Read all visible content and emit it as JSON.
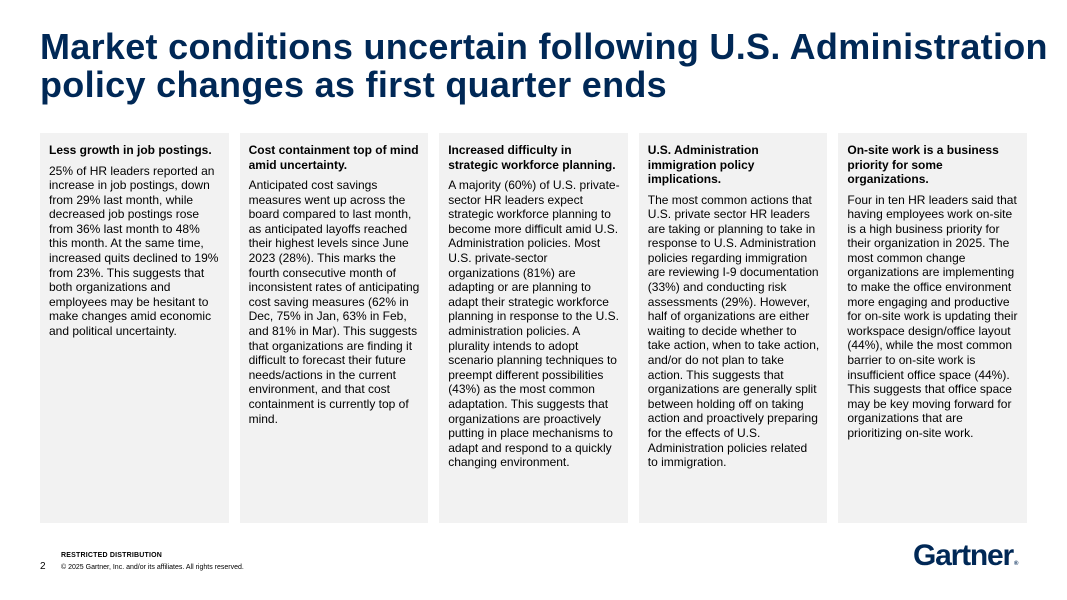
{
  "title": "Market conditions uncertain following U.S. Administration policy changes as first quarter ends",
  "cards": [
    {
      "heading": "Less growth in job postings.",
      "body": "25% of HR leaders reported an increase in job postings, down from 29% last month, while decreased job postings rose from 36% last month to 48% this month. At the same time, increased quits declined to 19% from 23%. This suggests that both organizations and employees may be hesitant to make changes amid economic and political uncertainty."
    },
    {
      "heading": "Cost containment top of mind amid uncertainty.",
      "body": "Anticipated cost savings measures went up across the board compared to last month, as anticipated layoffs reached their highest levels since June 2023 (28%). This marks the fourth consecutive month of inconsistent rates of anticipating cost saving measures (62% in Dec, 75% in Jan, 63% in Feb, and 81% in Mar). This suggests that organizations are finding it difficult to forecast their future needs/actions in the current environment, and that cost containment is currently top of mind."
    },
    {
      "heading": "Increased difficulty in strategic workforce planning.",
      "body": "A majority (60%) of U.S. private-sector HR leaders expect strategic workforce planning to become more difficult amid U.S. Administration policies. Most U.S. private-sector organizations (81%) are adapting or are planning to adapt their strategic workforce planning in response to the U.S. administration policies. A plurality intends to adopt scenario planning techniques to preempt different possibilities (43%) as the most common adaptation. This suggests that organizations are proactively putting in place mechanisms to adapt and respond to a quickly changing environment."
    },
    {
      "heading": "U.S. Administration immigration policy implications.",
      "body": "The most common actions that U.S. private sector HR leaders are taking or planning to take in response to U.S. Administration policies regarding immigration are reviewing I-9 documentation (33%) and conducting risk assessments (29%). However, half of organizations are either waiting to decide whether to take action, when to take action, and/or do not plan to take action. This suggests that organizations are generally split between holding off on taking action and proactively preparing for the effects of U.S. Administration policies related to immigration."
    },
    {
      "heading": "On-site work is a business priority for some organizations.",
      "body": "Four in ten HR leaders said that having employees work on-site is a high business priority for their organization in 2025. The most common change organizations are implementing to make the office environment more engaging and productive for on-site work is updating their workspace design/office layout (44%), while the most common barrier to on-site work is insufficient office space (44%). This suggests that office space may be key moving forward for organizations that are prioritizing on-site work."
    }
  ],
  "footer": {
    "distribution": "RESTRICTED DISTRIBUTION",
    "copyright": "© 2025 Gartner, Inc. and/or its affiliates. All rights reserved.",
    "page_number": "2"
  },
  "logo": {
    "text": "Gartner",
    "mark": "®"
  },
  "colors": {
    "brand_navy": "#002856",
    "card_background": "#f2f2f2"
  }
}
